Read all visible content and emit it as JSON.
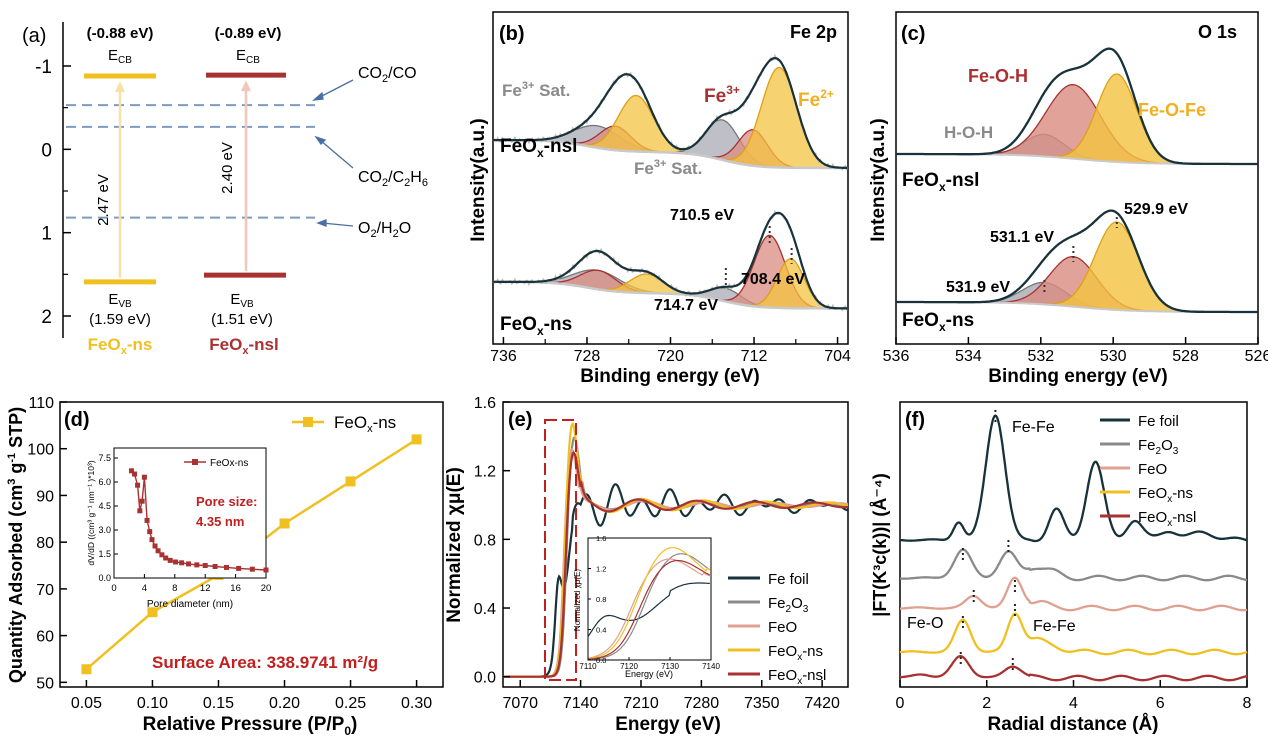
{
  "colors": {
    "yellow": "#F0C020",
    "red": "#A83232",
    "navy": "#17323A",
    "gray": "#8A8A8A",
    "pink": "#E0A090",
    "dash": "#7F9CC0",
    "pinkfill": "#D98C80",
    "grayfill": "#A9A9B4",
    "yellowfill": "#F3C340",
    "lightyellow": "#F5DE90",
    "lightred": "#F0B8AE"
  },
  "chart_data": [
    {
      "id": "a",
      "type": "diagram",
      "panel_label": "(a)",
      "y_ticks": [
        "-1",
        "0",
        "1",
        "2"
      ],
      "materials": [
        {
          "name": "FeO",
          "sub": "x",
          "suffix": "-ns",
          "ecb": "(-0.88 eV)",
          "ecb_label": "E",
          "ecb_sub": "CB",
          "evb_label": "E",
          "evb_sub": "VB",
          "evb": "(1.59 eV)",
          "gap": "2.47 eV",
          "cb": -0.88,
          "vb": 1.59
        },
        {
          "name": "FeO",
          "sub": "x",
          "suffix": "-nsl",
          "ecb": "(-0.89 eV)",
          "ecb_label": "E",
          "ecb_sub": "CB",
          "evb_label": "E",
          "evb_sub": "VB",
          "evb": "(1.51 eV)",
          "gap": "2.40 eV",
          "cb": -0.89,
          "vb": 1.51
        }
      ],
      "potentials": [
        {
          "label": "CO",
          "sub": "2",
          "rest": "/CO",
          "value": -0.53
        },
        {
          "label": "CO",
          "sub": "2",
          "rest": "/C",
          "sub2": "2",
          "rest2": "H",
          "sub3": "6",
          "value": -0.27
        },
        {
          "label": "O",
          "sub": "2",
          "rest": "/H",
          "sub2": "2",
          "rest2": "O",
          "value": 0.82
        }
      ]
    },
    {
      "id": "b",
      "type": "line",
      "panel_label": "(b)",
      "title": "Fe 2p",
      "xlabel": "Binding energy (eV)",
      "ylabel": "Intensity(a.u.)",
      "x_ticks": [
        "736",
        "728",
        "720",
        "712",
        "704"
      ],
      "xlim": [
        737,
        703
      ],
      "labels": {
        "fe3sat": "Fe",
        "fe3sat_sup": "3+",
        "fe3sat_rest": " Sat.",
        "fe3": "Fe",
        "fe3_sup": "3+",
        "fe2": "Fe",
        "fe2_sup": "2+",
        "nsl": "FeO",
        "nsl_sub": "x",
        "nsl_rest": "-nsl",
        "ns": "FeO",
        "ns_sub": "x",
        "ns_rest": "-ns",
        "p1": "710.5 eV",
        "p2": "708.4 eV",
        "p3": "714.7 eV"
      },
      "peaks": {
        "fe2": [
          709.6,
          707.7
        ],
        "fe3": [
          712.1,
          710.5
        ],
        "sat3": [
          715.0,
          715.0
        ],
        "fe2sat": [
          723.3,
          723.3
        ],
        "fe3_2p12": [
          725.3,
          724.9
        ],
        "sat2": [
          727.0,
          727.0
        ]
      }
    },
    {
      "id": "c",
      "type": "line",
      "panel_label": "(c)",
      "title": "O 1s",
      "xlabel": "Binding energy (eV)",
      "ylabel": "Intensity(a.u.)",
      "x_ticks": [
        "536",
        "534",
        "532",
        "530",
        "528",
        "526"
      ],
      "xlim": [
        536,
        526
      ],
      "labels": {
        "foh": "Fe-O-H",
        "fof": "Fe-O-Fe",
        "hoh": "H-O-H",
        "nsl": "FeO",
        "nsl_sub": "x",
        "nsl_rest": "-nsl",
        "ns": "FeO",
        "ns_sub": "x",
        "ns_rest": "-ns",
        "p1": "529.9 eV",
        "p2": "531.1 eV",
        "p3": "531.9 eV"
      },
      "peaks_nsl": [
        531.1,
        529.9,
        531.9
      ],
      "peaks_ns": [
        531.1,
        529.9,
        531.9
      ]
    },
    {
      "id": "d",
      "type": "line",
      "panel_label": "(d)",
      "xlabel": "Relative Pressure (P/P",
      "xlabel_sub": "0",
      "xlabel_end": ")",
      "ylabel": "Quantity Adsorbed (cm",
      "ylabel_sup1": "3",
      "ylabel_mid": " g",
      "ylabel_sup2": "-1",
      "ylabel_end": " STP)",
      "x_ticks": [
        "0.05",
        "0.10",
        "0.15",
        "0.20",
        "0.25",
        "0.30"
      ],
      "y_ticks": [
        "50",
        "60",
        "70",
        "80",
        "90",
        "100",
        "110"
      ],
      "xlim": [
        0.03,
        0.32
      ],
      "ylim": [
        49,
        110
      ],
      "series": [
        {
          "name": "FeO",
          "name_sub": "x",
          "name_rest": "-ns",
          "x": [
            0.05,
            0.1,
            0.15,
            0.2,
            0.25,
            0.3
          ],
          "y": [
            52.8,
            65.0,
            73.0,
            84.0,
            93.0,
            102.0
          ]
        }
      ],
      "annotation": "Surface Area: 338.9741 m²/g",
      "inset": {
        "xlabel": "Pore diameter (nm)",
        "ylabel": "dV/dD ((cm³ g⁻¹ nm⁻¹ )*10³)",
        "x_ticks": [
          "0",
          "4",
          "8",
          "12",
          "16",
          "20"
        ],
        "y_ticks": [
          "0.0",
          "1.5",
          "3.0",
          "4.5",
          "6.0",
          "7.5"
        ],
        "xlim": [
          0,
          20
        ],
        "ylim": [
          0,
          7.5
        ],
        "legend": "FeOx-ns",
        "annotation1": "Pore size:",
        "annotation2": "4.35 nm",
        "x": [
          2.3,
          2.7,
          3.1,
          3.4,
          3.7,
          4.0,
          4.35,
          4.7,
          5.0,
          5.4,
          5.8,
          6.3,
          6.8,
          7.4,
          8.1,
          8.9,
          9.8,
          10.9,
          12.0,
          13.3,
          14.8,
          16.4,
          18.2,
          20.0
        ],
        "y": [
          6.7,
          6.5,
          5.8,
          4.2,
          4.8,
          6.3,
          3.6,
          2.9,
          2.4,
          2.0,
          1.7,
          1.45,
          1.25,
          1.1,
          1.0,
          0.95,
          0.88,
          0.82,
          0.78,
          0.72,
          0.66,
          0.6,
          0.55,
          0.5
        ]
      }
    },
    {
      "id": "e",
      "type": "line",
      "panel_label": "(e)",
      "xlabel": "Energy (eV)",
      "ylabel": "Normalized χμ(E)",
      "x_ticks": [
        "7070",
        "7140",
        "7210",
        "7280",
        "7350",
        "7420"
      ],
      "y_ticks": [
        "0.0",
        "0.4",
        "0.8",
        "1.2",
        "1.6"
      ],
      "xlim": [
        7050,
        7450
      ],
      "ylim": [
        -0.06,
        1.6
      ],
      "legend": [
        {
          "name": "Fe foil"
        },
        {
          "name": "Fe",
          "sub": "2",
          "rest": "O",
          "sub2": "3"
        },
        {
          "name": "FeO"
        },
        {
          "name": "FeO",
          "sub": "x",
          "rest": "-ns"
        },
        {
          "name": "FeO",
          "sub": "x",
          "rest": "-nsl"
        }
      ],
      "inset": {
        "xlabel": "Energy (eV)",
        "ylabel": "Normalized χμ(E)",
        "x_ticks": [
          "7110",
          "7120",
          "7130",
          "7140"
        ],
        "y_ticks": [
          "0.0",
          "0.4",
          "0.8",
          "1.2",
          "1.6"
        ],
        "xlim": [
          7110,
          7140
        ],
        "ylim": [
          0,
          1.6
        ]
      }
    },
    {
      "id": "f",
      "type": "line",
      "panel_label": "(f)",
      "xlabel": "Radial distance (Å)",
      "ylabel": "|FT(K³c(k))| (Å⁻⁴)",
      "x_ticks": [
        "0",
        "2",
        "4",
        "6",
        "8"
      ],
      "xlim": [
        0,
        8
      ],
      "legend": [
        {
          "name": "Fe foil"
        },
        {
          "name": "Fe",
          "sub": "2",
          "rest": "O",
          "sub2": "3"
        },
        {
          "name": "FeO"
        },
        {
          "name": "FeO",
          "sub": "x",
          "rest": "-ns"
        },
        {
          "name": "FeO",
          "sub": "x",
          "rest": "-nsl"
        }
      ],
      "annotations": {
        "fefe_top": "Fe-Fe",
        "feo": "Fe-O",
        "fefe": "Fe-Fe"
      }
    }
  ]
}
